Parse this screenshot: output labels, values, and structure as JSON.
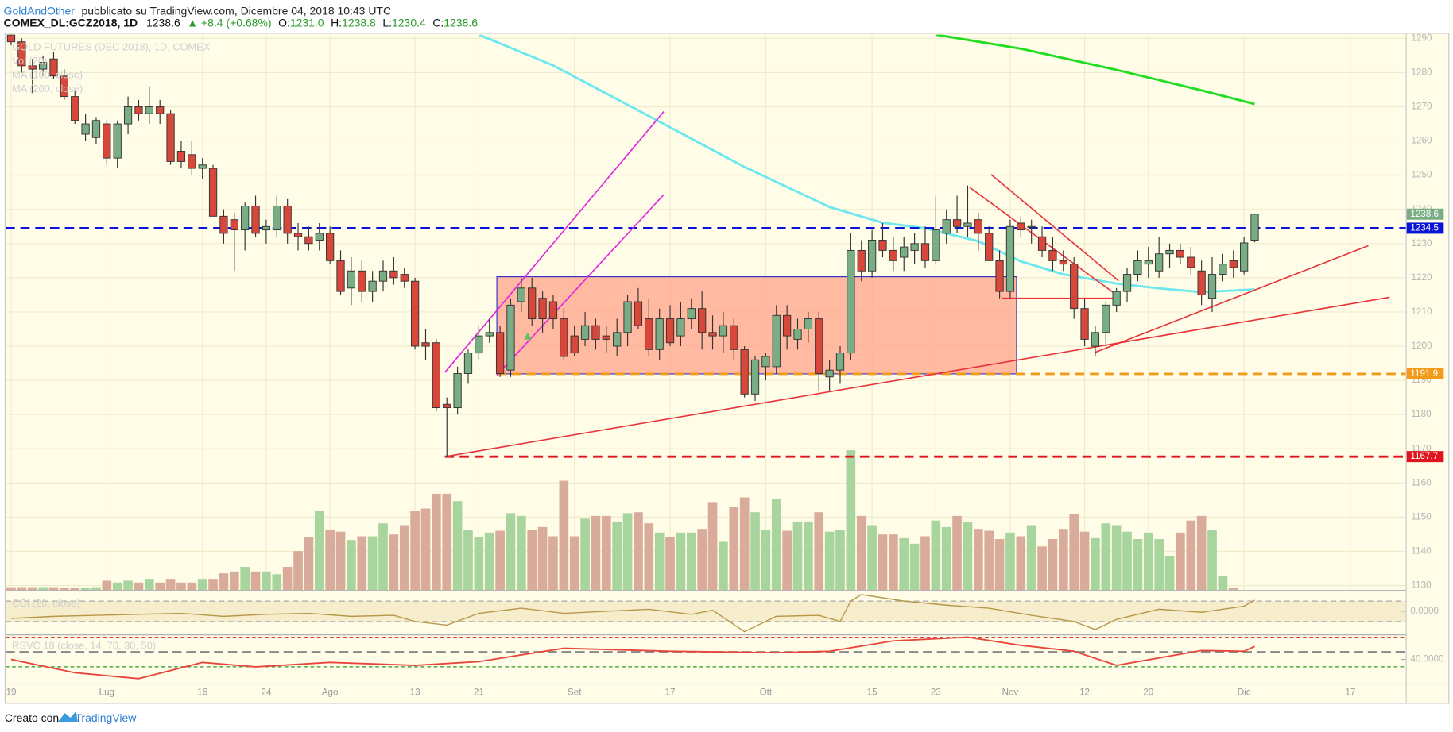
{
  "header": {
    "publisher": "GoldAndOther",
    "published": "pubblicato su TradingView.com, Dicembre 04, 2018 10:43 UTC",
    "symbol": "COMEX_DL:GCZ2018, 1D",
    "last": "1238.6",
    "change": "▲ +8.4 (+0.68%)",
    "o_label": "O:",
    "o": "1231.0",
    "h_label": "H:",
    "h": "1238.8",
    "l_label": "L:",
    "l": "1230.4",
    "c_label": "C:",
    "c": "1238.6"
  },
  "footer": {
    "made_with": "Creato con",
    "brand": "TradingView"
  },
  "chart_data": {
    "type": "candlestick",
    "legend": [
      "GOLD FUTURES (DEC 2018), 1D, COMEX",
      "Vol (20)",
      "MA (100, close)",
      "MA (200, close)"
    ],
    "categories": [
      "19",
      null,
      null,
      null,
      null,
      null,
      null,
      null,
      null,
      "Lug",
      null,
      null,
      null,
      null,
      null,
      null,
      null,
      null,
      "16",
      null,
      null,
      null,
      null,
      null,
      "24",
      null,
      null,
      null,
      null,
      null,
      "Ago",
      null,
      null,
      null,
      null,
      null,
      null,
      null,
      "13",
      null,
      null,
      null,
      null,
      null,
      "21",
      null,
      null,
      null,
      null,
      null,
      null,
      null,
      null,
      "Set",
      null,
      null,
      null,
      null,
      null,
      null,
      null,
      null,
      "17",
      null,
      null,
      null,
      null,
      null,
      null,
      null,
      null,
      "Ott",
      null,
      null,
      null,
      null,
      null,
      null,
      null,
      null,
      null,
      "15",
      null,
      null,
      null,
      null,
      null,
      "23",
      null,
      null,
      null,
      null,
      null,
      null,
      "Nov",
      null,
      null,
      null,
      null,
      null,
      null,
      "12",
      null,
      null,
      null,
      null,
      null,
      "20",
      null,
      null,
      null,
      null,
      null,
      null,
      null,
      null,
      "Dic",
      null,
      null,
      null,
      null,
      null,
      null,
      null,
      null,
      null,
      "17",
      null,
      null,
      null,
      null,
      null
    ],
    "ohlc": [
      [
        1291,
        1291.5,
        1288,
        1289
      ],
      [
        1289,
        1290,
        1280,
        1282
      ],
      [
        1282,
        1284,
        1274,
        1281
      ],
      [
        1281,
        1285,
        1279,
        1283
      ],
      [
        1284,
        1286,
        1278,
        1279
      ],
      [
        1279,
        1281,
        1272,
        1273
      ],
      [
        1273,
        1275,
        1265,
        1266
      ],
      [
        1262,
        1268,
        1260,
        1265
      ],
      [
        1261,
        1267,
        1259,
        1266
      ],
      [
        1265,
        1266,
        1253,
        1255
      ],
      [
        1255,
        1266,
        1252,
        1265
      ],
      [
        1265,
        1273,
        1262,
        1270
      ],
      [
        1270,
        1272,
        1266,
        1268
      ],
      [
        1268,
        1276,
        1265,
        1270
      ],
      [
        1270,
        1272,
        1265,
        1268
      ],
      [
        1268,
        1269,
        1253,
        1254
      ],
      [
        1257,
        1260,
        1252,
        1254
      ],
      [
        1256,
        1260,
        1250,
        1252
      ],
      [
        1252,
        1255,
        1249,
        1253
      ],
      [
        1252,
        1253,
        1238,
        1238
      ],
      [
        1238,
        1240,
        1230,
        1233
      ],
      [
        1237,
        1239,
        1222,
        1234
      ],
      [
        1234,
        1242,
        1228,
        1241
      ],
      [
        1241,
        1244,
        1232,
        1233
      ],
      [
        1234,
        1237,
        1230,
        1235
      ],
      [
        1234,
        1244,
        1232,
        1241
      ],
      [
        1241,
        1243,
        1230,
        1233
      ],
      [
        1233,
        1236,
        1228,
        1232
      ],
      [
        1232,
        1235,
        1228,
        1230
      ],
      [
        1231,
        1236,
        1228,
        1233
      ],
      [
        1233,
        1235,
        1224,
        1225
      ],
      [
        1225,
        1228,
        1215,
        1216
      ],
      [
        1217,
        1226,
        1212,
        1222
      ],
      [
        1222,
        1225,
        1213,
        1216
      ],
      [
        1216,
        1222,
        1213,
        1219
      ],
      [
        1219,
        1225,
        1216,
        1222
      ],
      [
        1222,
        1226,
        1218,
        1220
      ],
      [
        1221,
        1223,
        1217,
        1219
      ],
      [
        1219,
        1220,
        1199,
        1200
      ],
      [
        1201,
        1205,
        1196,
        1200
      ],
      [
        1201,
        1202,
        1181,
        1182
      ],
      [
        1183,
        1185,
        1167.7,
        1182
      ],
      [
        1182,
        1194,
        1180,
        1192
      ],
      [
        1192,
        1199,
        1189,
        1198
      ],
      [
        1198,
        1206,
        1196,
        1203
      ],
      [
        1203,
        1208,
        1201,
        1204
      ],
      [
        1204,
        1206,
        1191,
        1192
      ],
      [
        1193,
        1214,
        1191,
        1212
      ],
      [
        1213,
        1220,
        1210,
        1217
      ],
      [
        1217,
        1220,
        1206,
        1208
      ],
      [
        1214,
        1216,
        1204,
        1208
      ],
      [
        1213,
        1215,
        1205,
        1208
      ],
      [
        1208,
        1211,
        1196,
        1197
      ],
      [
        1203,
        1206,
        1197,
        1198
      ],
      [
        1202,
        1210,
        1200,
        1206
      ],
      [
        1206,
        1208,
        1199,
        1202
      ],
      [
        1203,
        1206,
        1198,
        1202
      ],
      [
        1200,
        1208,
        1197,
        1204
      ],
      [
        1204,
        1215,
        1200,
        1213
      ],
      [
        1213,
        1217,
        1205,
        1206
      ],
      [
        1208,
        1214,
        1197,
        1199
      ],
      [
        1199,
        1211,
        1196,
        1208
      ],
      [
        1208,
        1212,
        1200,
        1201
      ],
      [
        1203,
        1213,
        1200,
        1208
      ],
      [
        1208,
        1214,
        1205,
        1211
      ],
      [
        1211,
        1216,
        1199,
        1204
      ],
      [
        1204,
        1209,
        1199,
        1203
      ],
      [
        1203,
        1210,
        1198,
        1206
      ],
      [
        1206,
        1208,
        1196,
        1199
      ],
      [
        1199,
        1200,
        1185,
        1186
      ],
      [
        1186,
        1197,
        1184,
        1196
      ],
      [
        1194,
        1198,
        1190,
        1197
      ],
      [
        1194,
        1212,
        1192,
        1209
      ],
      [
        1209,
        1212,
        1199,
        1203
      ],
      [
        1202,
        1208,
        1199,
        1205
      ],
      [
        1205,
        1210,
        1201,
        1208
      ],
      [
        1208,
        1210,
        1187,
        1192
      ],
      [
        1191,
        1196,
        1187,
        1193
      ],
      [
        1193,
        1200,
        1189,
        1198
      ],
      [
        1198,
        1233,
        1196,
        1228
      ],
      [
        1228,
        1231,
        1219,
        1222
      ],
      [
        1222,
        1234,
        1220,
        1231
      ],
      [
        1231,
        1236,
        1226,
        1228
      ],
      [
        1228,
        1232,
        1222,
        1225
      ],
      [
        1226,
        1232,
        1222,
        1229
      ],
      [
        1228,
        1233,
        1224,
        1230
      ],
      [
        1230,
        1235,
        1223,
        1225
      ],
      [
        1225,
        1244,
        1224,
        1234
      ],
      [
        1233,
        1240,
        1230,
        1237
      ],
      [
        1237,
        1244,
        1233,
        1235
      ],
      [
        1235,
        1247,
        1232,
        1236
      ],
      [
        1237,
        1239,
        1228,
        1233
      ],
      [
        1233,
        1235,
        1225,
        1225
      ],
      [
        1225,
        1228,
        1214,
        1216
      ],
      [
        1216,
        1237,
        1214,
        1235
      ],
      [
        1236,
        1238,
        1232,
        1234
      ],
      [
        1235,
        1237,
        1230,
        1235
      ],
      [
        1232,
        1235,
        1226,
        1228
      ],
      [
        1228,
        1232,
        1222,
        1225
      ],
      [
        1225,
        1228,
        1222,
        1224
      ],
      [
        1224,
        1226,
        1208,
        1211
      ],
      [
        1211,
        1214,
        1200,
        1202
      ],
      [
        1200,
        1206,
        1197,
        1204
      ],
      [
        1204,
        1213,
        1200,
        1212
      ],
      [
        1212,
        1217,
        1210,
        1216
      ],
      [
        1216,
        1223,
        1213,
        1221
      ],
      [
        1221,
        1228,
        1219,
        1225
      ],
      [
        1224,
        1229,
        1220,
        1225
      ],
      [
        1222,
        1232,
        1220,
        1227
      ],
      [
        1227,
        1230,
        1223,
        1228
      ],
      [
        1228,
        1230,
        1224,
        1226
      ],
      [
        1226,
        1229,
        1221,
        1223
      ],
      [
        1222,
        1225,
        1212,
        1215
      ],
      [
        1214,
        1226,
        1210,
        1221
      ],
      [
        1221,
        1227,
        1219,
        1224
      ],
      [
        1225,
        1228,
        1220,
        1223
      ],
      [
        1222,
        1232,
        1221,
        1230.2
      ],
      [
        1231.0,
        1238.8,
        1230.4,
        1238.6
      ],
      null,
      null,
      null,
      null,
      null,
      null,
      null,
      null,
      null,
      null,
      null,
      null,
      null,
      null
    ],
    "volume": [
      3,
      3,
      3,
      3,
      3,
      2,
      2,
      2,
      3,
      10,
      8,
      10,
      8,
      12,
      8,
      12,
      8,
      8,
      12,
      12,
      18,
      20,
      25,
      20,
      20,
      17,
      25,
      42,
      57,
      85,
      65,
      63,
      54,
      58,
      58,
      72,
      60,
      70,
      85,
      88,
      104,
      104,
      96,
      65,
      57,
      62,
      64,
      83,
      80,
      65,
      68,
      58,
      118,
      58,
      77,
      80,
      80,
      74,
      83,
      84,
      72,
      62,
      57,
      62,
      62,
      66,
      95,
      52,
      90,
      100,
      84,
      65,
      98,
      64,
      74,
      74,
      84,
      63,
      65,
      151,
      80,
      70,
      60,
      60,
      56,
      50,
      58,
      75,
      68,
      80,
      73,
      66,
      64,
      55,
      62,
      58,
      70,
      47,
      55,
      66,
      82,
      63,
      56,
      72,
      70,
      63,
      55,
      62,
      55,
      37,
      62,
      75,
      80,
      65,
      15,
      2,
      null,
      null,
      null,
      null,
      null,
      null,
      null,
      null,
      null,
      null,
      null,
      null,
      null,
      null,
      null,
      null
    ],
    "up_color": "#78ad86",
    "down_color": "#d8473c",
    "volume_up_color": "#a8d49e",
    "volume_down_color": "#d9ab9a",
    "ylim": [
      1128.7,
      1291.1
    ],
    "yticks": [
      1130,
      1140,
      1150,
      1160,
      1170,
      1180,
      1190,
      1200,
      1210,
      1220,
      1230,
      1240,
      1250,
      1260,
      1270,
      1280,
      1290
    ],
    "grid": true,
    "ma100": {
      "color": "#6ee8ee",
      "x": [
        44,
        51,
        60,
        69,
        77,
        82,
        86,
        91,
        95,
        99,
        104,
        108,
        112,
        117
      ],
      "values": [
        1291.1,
        1282.1,
        1267.3,
        1252.4,
        1240.7,
        1236.1,
        1234.5,
        1230.7,
        1224.8,
        1221,
        1218.3,
        1216.9,
        1215.8,
        1216.6
      ]
    },
    "ma200": {
      "color": "#22dd22",
      "x": [
        87,
        95,
        104,
        112,
        117
      ],
      "values": [
        1291.1,
        1287,
        1280.8,
        1274.8,
        1270.8
      ]
    },
    "levels": [
      {
        "value": 1234.5,
        "color": "#0a14d8"
      },
      {
        "value": 1191.9,
        "color": "#f29a1a",
        "x_start": 45.7
      },
      {
        "value": 1167.7,
        "color": "#e0141e",
        "x_start": 40.8
      }
    ],
    "zone": {
      "x": [
        45.7,
        94.6
      ],
      "y": [
        1191.9,
        1220.3
      ],
      "fill": "#ffa38a",
      "stroke": "#3333cc"
    },
    "lines": [
      {
        "color": "#e8333a",
        "x": [
          40.8,
          129.7
        ],
        "y": [
          1167.7,
          1214.3
        ]
      },
      {
        "color": "#e8333a",
        "x": [
          102,
          127.7
        ],
        "y": [
          1198.2,
          1229.4
        ]
      },
      {
        "color": "#e8333a",
        "x": [
          90.2,
          104
        ],
        "y": [
          1246.4,
          1215
        ]
      },
      {
        "color": "#e8333a",
        "x": [
          92.2,
          104.2
        ],
        "y": [
          1250.2,
          1219.1
        ]
      },
      {
        "color": "#e8333a",
        "x": [
          93.2,
          104
        ],
        "y": [
          1214,
          1214
        ]
      },
      {
        "color": "#e026e0",
        "x": [
          40.8,
          61.4
        ],
        "y": [
          1192.3,
          1268.6
        ]
      },
      {
        "color": "#e026e0",
        "x": [
          45.7,
          61.4
        ],
        "y": [
          1191.5,
          1244.3
        ]
      }
    ],
    "markers": [
      {
        "x": 48.6,
        "y": 1203,
        "color": "#5ec45e"
      }
    ],
    "cci": {
      "title": "CCI (20, close)",
      "color": "#b8974a",
      "ylim": [
        -227,
        200
      ],
      "yticks": [
        {
          "value": 0,
          "label": "0.0000"
        }
      ],
      "levels": [
        100,
        -100
      ],
      "x": [
        0,
        4,
        8,
        12,
        16,
        20,
        24,
        28,
        32,
        36,
        38,
        41,
        44,
        48,
        52,
        56,
        60,
        64,
        66,
        69,
        72,
        76,
        78,
        79,
        80,
        84,
        88,
        92,
        96,
        100,
        102,
        104,
        108,
        112,
        116,
        117
      ],
      "values": [
        -70,
        -50,
        -40,
        -30,
        -20,
        -50,
        -30,
        -20,
        -50,
        -40,
        -100,
        -136,
        -20,
        30,
        -20,
        0,
        20,
        -30,
        10,
        -200,
        -50,
        -40,
        -100,
        100,
        164,
        100,
        60,
        30,
        -40,
        -100,
        -180,
        -80,
        20,
        -10,
        50,
        109
      ]
    },
    "rsi": {
      "title": "RSVC 18 (close, 14, 70, 30, 50)",
      "color": "#e8463a",
      "ylim": [
        7.5,
        73.75
      ],
      "yticks": [
        {
          "value": 40,
          "label": "40.0000"
        }
      ],
      "levels": [
        {
          "value": 70,
          "color": "#e04040"
        },
        {
          "value": 50,
          "color": "#888888"
        },
        {
          "value": 30,
          "color": "#2a9a2a"
        }
      ],
      "x": [
        0,
        6,
        12,
        18,
        23,
        30,
        38,
        44,
        52,
        62,
        72,
        77,
        83,
        90,
        95,
        100,
        104,
        108,
        112,
        116,
        117
      ],
      "values": [
        40,
        22,
        14,
        36,
        30,
        36,
        32,
        37,
        55,
        51,
        49,
        51,
        65,
        70,
        59,
        51,
        32,
        42,
        52,
        51,
        57.5
      ]
    }
  }
}
